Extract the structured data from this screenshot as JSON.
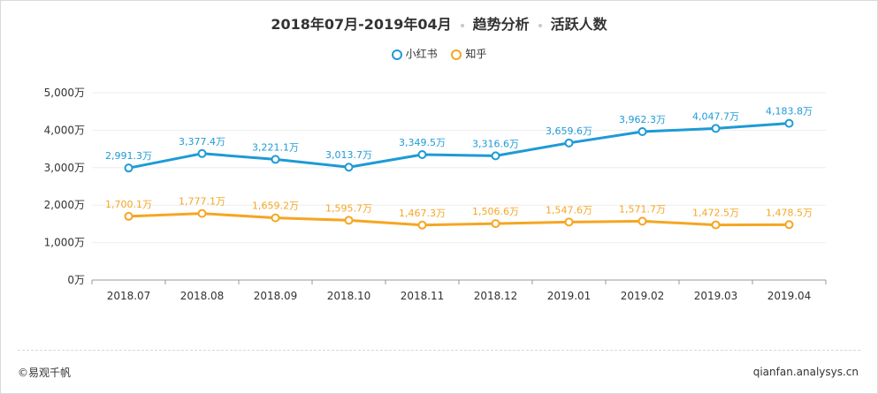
{
  "header": {
    "date_range": "2018年07月-2019年04月",
    "section": "趋势分析",
    "metric": "活跃人数"
  },
  "footer": {
    "brand": "©易观千帆",
    "url": "qianfan.analysys.cn"
  },
  "colors": {
    "xiaohongshu": "#1e9ad6",
    "zhihu": "#f5a623",
    "grid": "#eeeeee",
    "axis_text": "#333333"
  },
  "chart_data": {
    "type": "line",
    "title": "2018年07月-2019年04月 · 趋势分析 · 活跃人数",
    "categories": [
      "2018.07",
      "2018.08",
      "2018.09",
      "2018.10",
      "2018.11",
      "2018.12",
      "2019.01",
      "2019.02",
      "2019.03",
      "2019.04"
    ],
    "y_ticks": [
      0,
      1000,
      2000,
      3000,
      4000,
      5000
    ],
    "y_tick_labels": [
      "0万",
      "1,000万",
      "2,000万",
      "3,000万",
      "4,000万",
      "5,000万"
    ],
    "ylim": [
      0,
      5000
    ],
    "unit": "万",
    "legend_position": "top-center",
    "grid": true,
    "series": [
      {
        "name": "小红书",
        "color": "#1e9ad6",
        "values": [
          2991.3,
          3377.4,
          3221.1,
          3013.7,
          3349.5,
          3316.6,
          3659.6,
          3962.3,
          4047.7,
          4183.8
        ],
        "labels": [
          "2,991.3万",
          "3,377.4万",
          "3,221.1万",
          "3,013.7万",
          "3,349.5万",
          "3,316.6万",
          "3,659.6万",
          "3,962.3万",
          "4,047.7万",
          "4,183.8万"
        ]
      },
      {
        "name": "知乎",
        "color": "#f5a623",
        "values": [
          1700.1,
          1777.1,
          1659.2,
          1595.7,
          1467.3,
          1506.6,
          1547.6,
          1571.7,
          1472.5,
          1478.5
        ],
        "labels": [
          "1,700.1万",
          "1,777.1万",
          "1,659.2万",
          "1,595.7万",
          "1,467.3万",
          "1,506.6万",
          "1,547.6万",
          "1,571.7万",
          "1,472.5万",
          "1,478.5万"
        ]
      }
    ]
  }
}
